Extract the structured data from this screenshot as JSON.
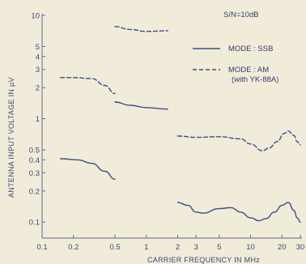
{
  "chart_data": {
    "type": "line",
    "title": "",
    "annotation": "S/N=10dB",
    "xlabel": "CARRIER FREQUENCY IN MHz",
    "ylabel": "ANTENNA INPUT VOLTAGE IN µV",
    "x_scale": "log",
    "y_scale": "log",
    "xlim": [
      0.1,
      30
    ],
    "ylim": [
      0.07,
      10
    ],
    "x_ticks": [
      {
        "value": 0.1,
        "label": "0.1"
      },
      {
        "value": 0.2,
        "label": "0.2"
      },
      {
        "value": 0.5,
        "label": "0.5"
      },
      {
        "value": 1,
        "label": "1"
      },
      {
        "value": 2,
        "label": "2"
      },
      {
        "value": 3,
        "label": "3"
      },
      {
        "value": 5,
        "label": "5"
      },
      {
        "value": 10,
        "label": "10"
      },
      {
        "value": 20,
        "label": "20"
      },
      {
        "value": 30,
        "label": "30"
      }
    ],
    "y_ticks": [
      {
        "value": 10,
        "label": "10"
      },
      {
        "value": 5,
        "label": "5"
      },
      {
        "value": 4,
        "label": "4"
      },
      {
        "value": 3,
        "label": "3"
      },
      {
        "value": 2,
        "label": "2"
      },
      {
        "value": 1,
        "label": "1"
      },
      {
        "value": 0.5,
        "label": "0.5"
      },
      {
        "value": 0.4,
        "label": "0.4"
      },
      {
        "value": 0.3,
        "label": "0.3"
      },
      {
        "value": 0.2,
        "label": "0.2"
      },
      {
        "value": 0.1,
        "label": "0.1"
      }
    ],
    "legend": [
      {
        "label": "MODE : SSB",
        "style": "solid"
      },
      {
        "label": "MODE : AM",
        "sublabel": "(with YK-88A)",
        "style": "dashed"
      }
    ],
    "series": [
      {
        "name": "SSB",
        "style": "solid",
        "segments": [
          [
            [
              0.15,
              0.41
            ],
            [
              0.22,
              0.4
            ],
            [
              0.3,
              0.37
            ],
            [
              0.4,
              0.31
            ],
            [
              0.5,
              0.26
            ]
          ],
          [
            [
              0.5,
              1.45
            ],
            [
              0.7,
              1.35
            ],
            [
              1.0,
              1.28
            ],
            [
              1.6,
              1.24
            ]
          ],
          [
            [
              2.0,
              0.155
            ],
            [
              2.5,
              0.145
            ],
            [
              3.0,
              0.125
            ],
            [
              3.5,
              0.122
            ],
            [
              5.0,
              0.135
            ],
            [
              6.5,
              0.138
            ],
            [
              8.0,
              0.125
            ],
            [
              10.0,
              0.11
            ],
            [
              12.0,
              0.103
            ],
            [
              14.0,
              0.108
            ],
            [
              17.0,
              0.125
            ],
            [
              20.0,
              0.145
            ],
            [
              23.0,
              0.155
            ],
            [
              26.0,
              0.13
            ],
            [
              28.0,
              0.11
            ],
            [
              30.0,
              0.1
            ]
          ]
        ]
      },
      {
        "name": "AM",
        "style": "dashed",
        "segments": [
          [
            [
              0.15,
              2.5
            ],
            [
              0.2,
              2.5
            ],
            [
              0.3,
              2.45
            ],
            [
              0.4,
              2.1
            ],
            [
              0.5,
              1.75
            ]
          ],
          [
            [
              0.5,
              7.8
            ],
            [
              0.7,
              7.3
            ],
            [
              1.0,
              7.0
            ],
            [
              1.6,
              7.1
            ]
          ],
          [
            [
              2.0,
              0.68
            ],
            [
              3.0,
              0.66
            ],
            [
              5.0,
              0.67
            ],
            [
              8.0,
              0.64
            ],
            [
              10.0,
              0.57
            ],
            [
              13.0,
              0.49
            ],
            [
              15.0,
              0.52
            ],
            [
              18.0,
              0.6
            ],
            [
              21.0,
              0.72
            ],
            [
              23.0,
              0.76
            ],
            [
              26.0,
              0.69
            ],
            [
              28.0,
              0.6
            ],
            [
              30.0,
              0.56
            ]
          ]
        ]
      }
    ],
    "grid": false,
    "legend_position": "top-right",
    "colors": {
      "background": "#f1ebd9",
      "line": "#3b4f86",
      "text": "#3a4b7a",
      "axis": "#5b6a92"
    }
  }
}
